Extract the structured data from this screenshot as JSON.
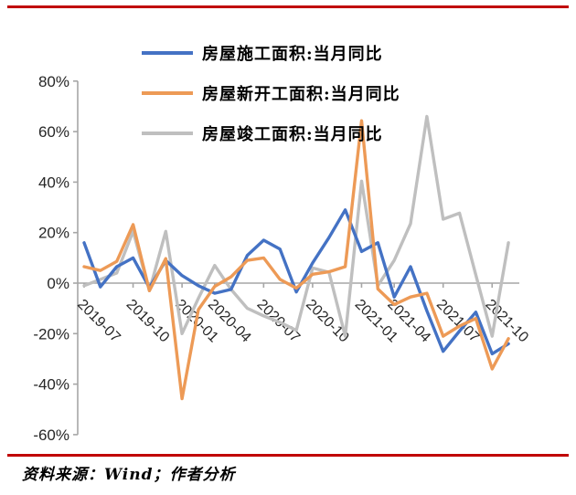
{
  "page": {
    "background": "#ffffff",
    "border_color": "#c00000"
  },
  "legend": {
    "items": [
      {
        "label": "房屋施工面积:当月同比",
        "color": "#4472c4"
      },
      {
        "label": "房屋新开工面积:当月同比",
        "color": "#ed9a56"
      },
      {
        "label": "房屋竣工面积:当月同比",
        "color": "#bfbfbf"
      }
    ]
  },
  "footer": {
    "text": "资料来源：Wind；作者分析"
  },
  "chart_data": {
    "type": "line",
    "title": "",
    "xlabel": "",
    "ylabel": "",
    "ylim": [
      -60,
      80
    ],
    "ytick_step": 20,
    "ytick_labels": [
      "80%",
      "60%",
      "40%",
      "20%",
      "0%",
      "-20%",
      "-40%",
      "-60%"
    ],
    "grid": false,
    "legend_position": "top-left",
    "axis_color": "#a6a6a6",
    "label_color": "#262626",
    "categories": [
      "2019-07",
      "2019-08",
      "2019-09",
      "2019-10",
      "2019-11",
      "2019-12",
      "2020-01",
      "2020-03",
      "2020-04",
      "2020-05",
      "2020-06",
      "2020-07",
      "2020-08",
      "2020-09",
      "2020-10",
      "2020-11",
      "2020-12",
      "2021-01",
      "2021-03",
      "2021-04",
      "2021-05",
      "2021-06",
      "2021-07",
      "2021-08",
      "2021-09",
      "2021-10",
      "2021-11"
    ],
    "x_tick_indices": [
      0,
      3,
      6,
      8,
      11,
      14,
      17,
      19,
      22,
      25
    ],
    "x_tick_labels": [
      "2019-07",
      "2019-10",
      "2020-01",
      "2020-04",
      "2020-07",
      "2020-10",
      "2021-01",
      "2021-04",
      "2021-07",
      "2021-10"
    ],
    "unit": "percent_yoy",
    "series": [
      {
        "name": "房屋施工面积:当月同比",
        "color": "#4472c4",
        "values": [
          16,
          -1.5,
          6.5,
          10,
          -1.8,
          9,
          3,
          -1,
          -4,
          -2.5,
          11,
          17,
          13.5,
          -3.5,
          8,
          18,
          29,
          12.5,
          16,
          -5.5,
          6.5,
          -11,
          -27,
          -19,
          -11.5,
          -28,
          -24
        ]
      },
      {
        "name": "房屋新开工面积:当月同比",
        "color": "#ed9a56",
        "values": [
          6.5,
          5,
          8.6,
          23.2,
          -3,
          9.7,
          -45.8,
          -10.5,
          -1.3,
          2.5,
          9,
          10,
          1.5,
          -2,
          3.5,
          4.5,
          6.5,
          64.3,
          -2.3,
          -8.5,
          -5.5,
          -4,
          -21,
          -17,
          -14,
          -34,
          -22
        ]
      },
      {
        "name": "房屋竣工面积:当月同比",
        "color": "#bfbfbf",
        "values": [
          -1,
          1.5,
          4,
          20.5,
          -3,
          20.5,
          -20,
          -6,
          7,
          -2.5,
          -10,
          -13,
          -15.5,
          -18.7,
          6,
          4.3,
          -21,
          40.4,
          -1,
          9,
          23.5,
          66,
          25.3,
          27.7,
          3.3,
          -21,
          16
        ]
      }
    ]
  }
}
